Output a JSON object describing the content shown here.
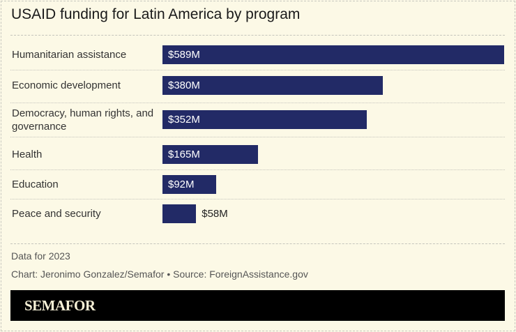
{
  "chart_data": {
    "type": "bar",
    "orientation": "horizontal",
    "title": "USAID funding for Latin America by program",
    "categories": [
      "Humanitarian assistance",
      "Economic development",
      "Democracy, human rights, and governance",
      "Health",
      "Education",
      "Peace and security"
    ],
    "values": [
      589,
      380,
      352,
      165,
      92,
      58
    ],
    "data_labels": [
      "$589M",
      "$380M",
      "$352M",
      "$165M",
      "$92M",
      "$58M"
    ],
    "unit": "USD millions",
    "bar_color": "#222a66",
    "grid": false
  },
  "notes": {
    "subtitle_note": "Data for 2023",
    "credit": "Chart: Jeronimo Gonzalez/Semafor • Source: ForeignAssistance.gov"
  },
  "brand": {
    "logo_text": "SEMAFOR"
  }
}
